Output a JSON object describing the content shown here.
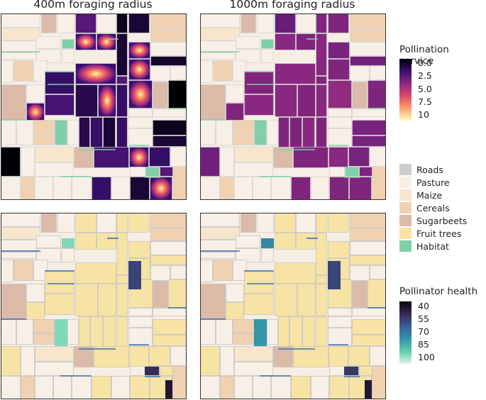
{
  "panel_titles": [
    "400m foraging radius",
    "1000m foraging radius"
  ],
  "legend_pollination": {
    "title": "Pollination service",
    "ticks": [
      "0.0",
      "2.5",
      "5.0",
      "7.5",
      "10"
    ],
    "colors": [
      "#000004",
      "#3b0f70",
      "#8c2981",
      "#de4968",
      "#fe9f6d",
      "#fcfdbf"
    ]
  },
  "legend_landuse": {
    "items": [
      {
        "label": "Roads",
        "color": "#cccccc"
      },
      {
        "label": "Pasture",
        "color": "#f8efe6"
      },
      {
        "label": "Maize",
        "color": "#f7e6cc"
      },
      {
        "label": "Cereals",
        "color": "#f0d2b0"
      },
      {
        "label": "Sugarbeets",
        "color": "#dcbaa8"
      },
      {
        "label": "Fruit trees",
        "color": "#f7e3a4"
      },
      {
        "label": "Habitat",
        "color": "#7fcfa8"
      }
    ]
  },
  "legend_health": {
    "title": "Pollinator health",
    "ticks": [
      "40",
      "55",
      "70",
      "85",
      "100"
    ],
    "colors": [
      "#0b0405",
      "#382a54",
      "#395d9c",
      "#3496a9",
      "#60ceac",
      "#def5e5"
    ]
  },
  "chart_data": {
    "type": "heatmap",
    "panels": [
      {
        "row": "top",
        "column": "400m foraging radius",
        "metric": "Pollination service"
      },
      {
        "row": "top",
        "column": "1000m foraging radius",
        "metric": "Pollination service"
      },
      {
        "row": "bottom",
        "column": "400m foraging radius",
        "metric": "Pollinator health"
      },
      {
        "row": "bottom",
        "column": "1000m foraging radius",
        "metric": "Pollinator health"
      }
    ],
    "pollination_service_range": [
      0,
      10
    ],
    "pollinator_health_range": [
      40,
      100
    ],
    "land_use_classes": [
      "Roads",
      "Pasture",
      "Maize",
      "Cereals",
      "Sugarbeets",
      "Fruit trees",
      "Habitat"
    ]
  }
}
